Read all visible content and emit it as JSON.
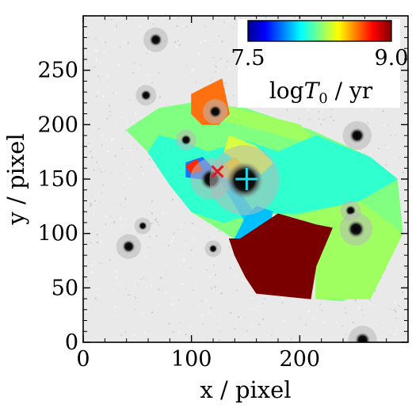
{
  "chart_data": {
    "type": "heatmap",
    "title": "",
    "xlabel": "x / pixel",
    "ylabel": "y / pixel",
    "xlim": [
      0,
      300
    ],
    "ylim": [
      0,
      300
    ],
    "x_ticks": [
      0,
      100,
      200
    ],
    "y_ticks": [
      0,
      50,
      100,
      150,
      200,
      250
    ],
    "colorbar": {
      "colormap": "jet",
      "min": 7.5,
      "max": 9.0,
      "min_label": "7.5",
      "max_label": "9.0",
      "label_parts": {
        "log": "log",
        "var": "T",
        "sub": "0",
        "unit": " / yr"
      },
      "placement": "top-right"
    },
    "markers": [
      {
        "name": "red-cross",
        "shape": "x",
        "color": "#e8141e",
        "x": 124,
        "y": 157
      },
      {
        "name": "cyan-plus",
        "shape": "+",
        "color": "#22d8e8",
        "x": 151,
        "y": 150
      }
    ],
    "regions": [
      {
        "logT0": 7.85,
        "color": "#80ff80",
        "points": [
          [
            100,
            220
          ],
          [
            150,
            215
          ],
          [
            210,
            195
          ],
          [
            265,
            170
          ],
          [
            290,
            150
          ],
          [
            295,
            100
          ],
          [
            280,
            90
          ],
          [
            270,
            70
          ],
          [
            260,
            50
          ],
          [
            240,
            38
          ],
          [
            215,
            40
          ],
          [
            215,
            85
          ],
          [
            195,
            115
          ],
          [
            165,
            120
          ],
          [
            140,
            95
          ],
          [
            100,
            120
          ],
          [
            80,
            145
          ],
          [
            60,
            175
          ],
          [
            40,
            195
          ],
          [
            70,
            215
          ]
        ]
      },
      {
        "logT0": 7.95,
        "color": "#a0ff60",
        "points": [
          [
            195,
            115
          ],
          [
            215,
            85
          ],
          [
            215,
            40
          ],
          [
            265,
            40
          ],
          [
            280,
            70
          ],
          [
            295,
            100
          ],
          [
            255,
            130
          ]
        ]
      },
      {
        "logT0": 7.95,
        "color": "#a0ff60",
        "points": [
          [
            120,
            220
          ],
          [
            200,
            200
          ],
          [
            220,
            180
          ],
          [
            165,
            195
          ],
          [
            125,
            205
          ]
        ]
      },
      {
        "logT0": 7.7,
        "color": "#30ffd0",
        "points": [
          [
            60,
            175
          ],
          [
            80,
            145
          ],
          [
            100,
            120
          ],
          [
            130,
            110
          ],
          [
            160,
            120
          ],
          [
            195,
            118
          ],
          [
            255,
            130
          ],
          [
            290,
            150
          ],
          [
            265,
            170
          ],
          [
            215,
            190
          ],
          [
            180,
            175
          ],
          [
            150,
            185
          ],
          [
            115,
            175
          ],
          [
            90,
            185
          ],
          [
            70,
            190
          ]
        ]
      },
      {
        "logT0": 7.65,
        "color": "#00d8ff",
        "points": [
          [
            120,
            160
          ],
          [
            135,
            135
          ],
          [
            150,
            110
          ],
          [
            160,
            100
          ],
          [
            165,
            110
          ],
          [
            150,
            130
          ],
          [
            140,
            145
          ]
        ]
      },
      {
        "logT0": 7.6,
        "color": "#00c0ff",
        "points": [
          [
            140,
            95
          ],
          [
            170,
            100
          ],
          [
            175,
            120
          ],
          [
            160,
            125
          ],
          [
            150,
            115
          ]
        ]
      },
      {
        "logT0": 7.55,
        "color": "#1a70ff",
        "points": [
          [
            95,
            165
          ],
          [
            110,
            170
          ],
          [
            120,
            160
          ],
          [
            110,
            150
          ],
          [
            95,
            152
          ]
        ]
      },
      {
        "logT0": 8.0,
        "color": "#d8ff40",
        "points": [
          [
            135,
            190
          ],
          [
            160,
            180
          ],
          [
            175,
            165
          ],
          [
            165,
            155
          ],
          [
            145,
            165
          ],
          [
            130,
            175
          ]
        ]
      },
      {
        "logT0": 8.25,
        "color": "#ffd000",
        "points": [
          [
            125,
            160
          ],
          [
            140,
            170
          ],
          [
            150,
            160
          ],
          [
            140,
            150
          ],
          [
            128,
            152
          ]
        ]
      },
      {
        "logT0": 8.55,
        "color": "#ff7010",
        "points": [
          [
            100,
            228
          ],
          [
            128,
            242
          ],
          [
            135,
            210
          ],
          [
            125,
            200
          ],
          [
            110,
            200
          ],
          [
            100,
            210
          ]
        ]
      },
      {
        "logT0": 8.75,
        "color": "#ff2a00",
        "points": [
          [
            95,
            162
          ],
          [
            105,
            168
          ],
          [
            110,
            158
          ],
          [
            100,
            155
          ]
        ]
      },
      {
        "logT0": 9.0,
        "color": "#7a0000",
        "points": [
          [
            145,
            95
          ],
          [
            180,
            118
          ],
          [
            215,
            108
          ],
          [
            230,
            105
          ],
          [
            215,
            70
          ],
          [
            210,
            40
          ],
          [
            160,
            45
          ],
          [
            150,
            60
          ],
          [
            140,
            80
          ],
          [
            135,
            95
          ]
        ]
      }
    ],
    "sources": [
      {
        "x": 67,
        "y": 278,
        "r": 6
      },
      {
        "x": 227,
        "y": 282,
        "r": 5
      },
      {
        "x": 253,
        "y": 190,
        "r": 7
      },
      {
        "x": 58,
        "y": 227,
        "r": 5
      },
      {
        "x": 122,
        "y": 212,
        "r": 6
      },
      {
        "x": 95,
        "y": 186,
        "r": 5
      },
      {
        "x": 118,
        "y": 150,
        "r": 10
      },
      {
        "x": 149,
        "y": 149,
        "r": 17
      },
      {
        "x": 55,
        "y": 107,
        "r": 4
      },
      {
        "x": 42,
        "y": 88,
        "r": 6
      },
      {
        "x": 120,
        "y": 86,
        "r": 4
      },
      {
        "x": 247,
        "y": 121,
        "r": 5
      },
      {
        "x": 252,
        "y": 104,
        "r": 8
      },
      {
        "x": 258,
        "y": 2,
        "r": 7
      }
    ]
  }
}
